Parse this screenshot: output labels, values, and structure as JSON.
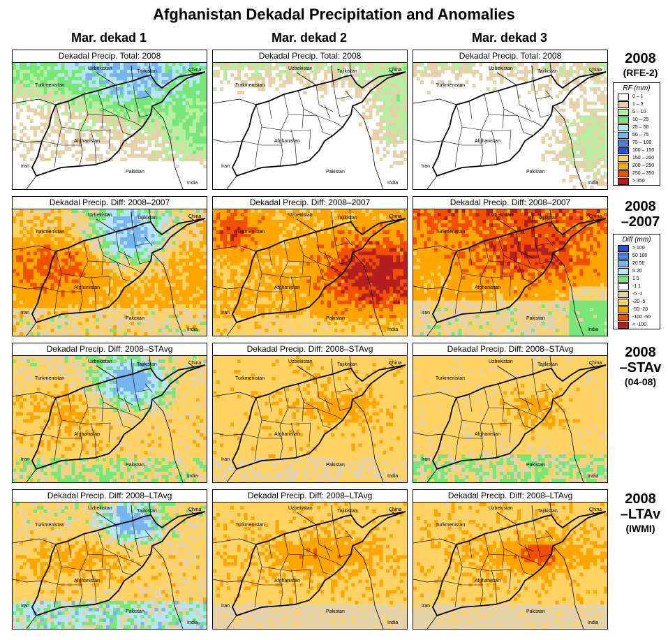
{
  "title": "Afghanistan Dekadal Precipitation and Anomalies",
  "columns": [
    "Mar. dekad 1",
    "Mar. dekad 2",
    "Mar. dekad 3"
  ],
  "rows": [
    {
      "label_lines": [
        "2008",
        "(RFE-2)"
      ],
      "panel_title": "Dekadal Precip. Total: 2008"
    },
    {
      "label_lines": [
        "2008",
        "–2007"
      ],
      "panel_title": "Dekadal Precip. Diff:  2008–2007"
    },
    {
      "label_lines": [
        "2008",
        "–STAv",
        "(04-08)"
      ],
      "panel_title": "Dekadal Precip. Diff:  2008–STAvg"
    },
    {
      "label_lines": [
        "2008",
        "–LTAv",
        "(IWMI)"
      ],
      "panel_title": "Dekadal Precip. Diff:  2008–LTAvg"
    }
  ],
  "map_labels": {
    "uzbekistan": "Uzbekistan",
    "tajikistan": "Tajikistan",
    "china": "China",
    "turkmenistan": "Turkmenistan",
    "afghanistan": "Afghanistan",
    "iran": "Iran",
    "pakistan": "Pakistan",
    "india": "India"
  },
  "legend_rf": {
    "title": "RF (mm)",
    "entries": [
      {
        "label": "0 – 1",
        "color": "#ffffff"
      },
      {
        "label": "1 – 5",
        "color": "#e6d2a8"
      },
      {
        "label": "5 – 10",
        "color": "#b4f0a0"
      },
      {
        "label": "10 – 25",
        "color": "#78e678"
      },
      {
        "label": "25 – 50",
        "color": "#b4e6f5"
      },
      {
        "label": "50 – 75",
        "color": "#78b4f0"
      },
      {
        "label": "75 – 100",
        "color": "#4682e6"
      },
      {
        "label": "100 – 150",
        "color": "#2850c8"
      },
      {
        "label": "150 – 200",
        "color": "#ffd264"
      },
      {
        "label": "200 – 250",
        "color": "#ffa500"
      },
      {
        "label": "250 – 350",
        "color": "#f05000"
      },
      {
        "label": "> 350",
        "color": "#b41e1e"
      }
    ]
  },
  "legend_diff": {
    "title": "Diff (mm)",
    "entries": [
      {
        "label": "> 100",
        "color": "#2850c8"
      },
      {
        "label": "50  100",
        "color": "#4682e6"
      },
      {
        "label": "20  50",
        "color": "#78b4f0"
      },
      {
        "label": "5  20",
        "color": "#b4e6f5"
      },
      {
        "label": "1  5",
        "color": "#78e678"
      },
      {
        "label": "-1  1",
        "color": "#ffffff"
      },
      {
        "label": "-5  -1",
        "color": "#e6d2a8"
      },
      {
        "label": "-20  -5",
        "color": "#ffd264"
      },
      {
        "label": "-50  -20",
        "color": "#ffa500"
      },
      {
        "label": "-100  -50",
        "color": "#f05000"
      },
      {
        "label": "< -100",
        "color": "#b41e1e"
      }
    ]
  },
  "colors": {
    "white": "#ffffff",
    "tan": "#e6d2a8",
    "lightgreen": "#b4f0a0",
    "green": "#78e678",
    "lightblue": "#b4e6f5",
    "blue": "#78b4f0",
    "darkblue": "#4682e6",
    "yellow": "#ffd264",
    "orange": "#ffa500",
    "redorange": "#f05000",
    "darkred": "#b41e1e",
    "border": "#000000"
  }
}
